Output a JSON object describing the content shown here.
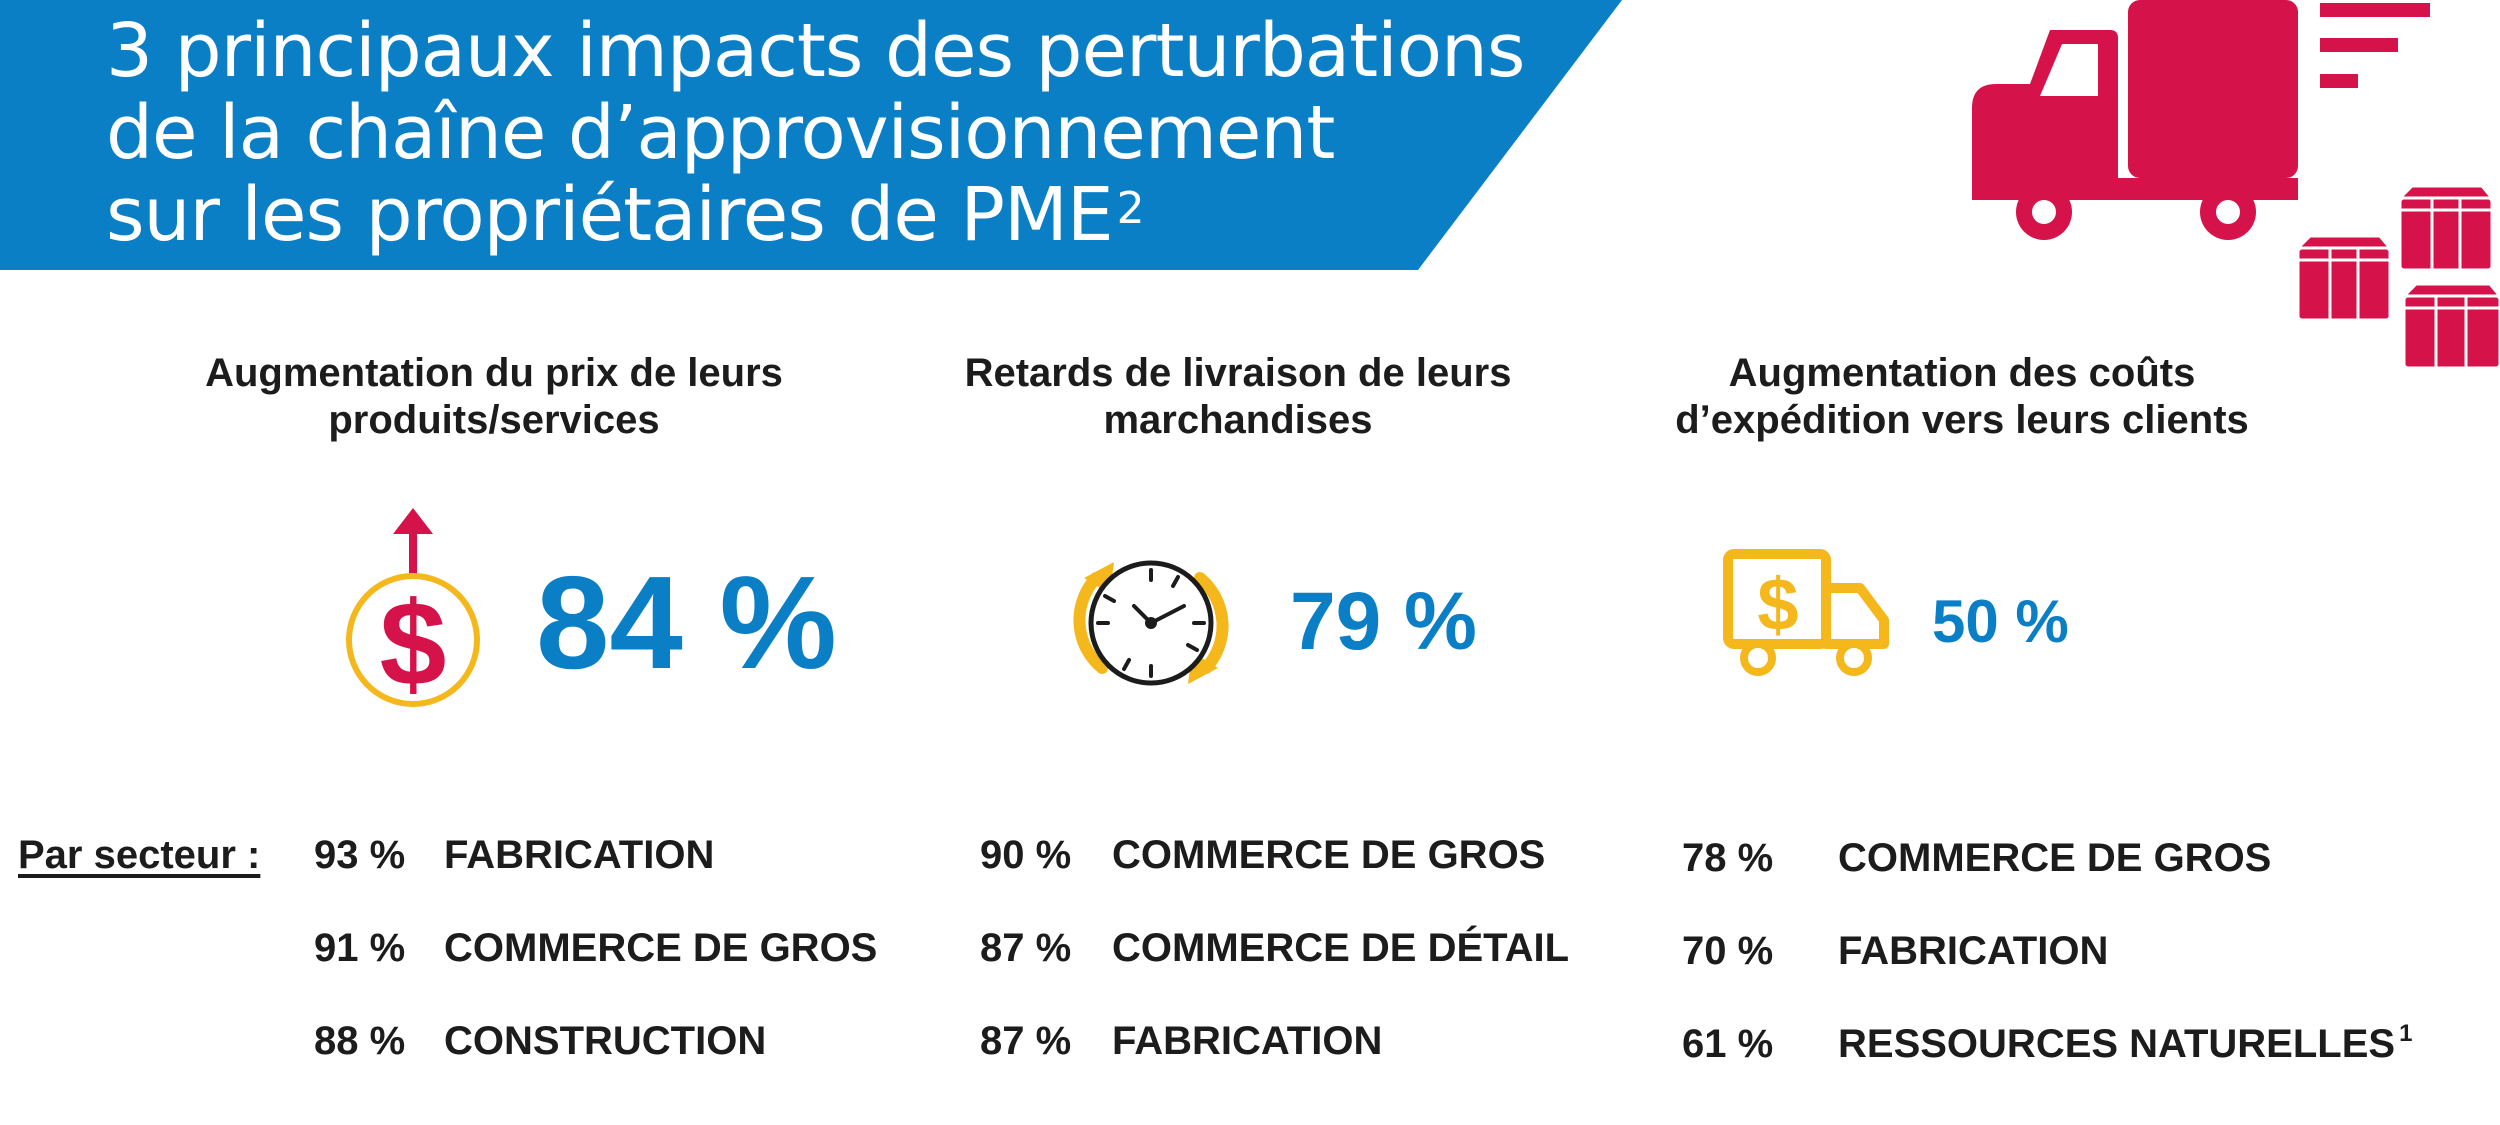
{
  "header": {
    "title_lines": [
      "3 principaux impacts des perturbations",
      "de la chaîne d’approvisionnement",
      "sur les propriétaires de PME"
    ],
    "title_footnote": "2"
  },
  "sector_label": "Par secteur :",
  "impacts": [
    {
      "heading_lines": [
        "Augmentation du prix de leurs",
        "produits/services"
      ],
      "value": "84 %",
      "icon": "dollar-up-arrow-icon",
      "sectors": [
        {
          "pct": "93 %",
          "name": "FABRICATION"
        },
        {
          "pct": "91 %",
          "name": "COMMERCE DE GROS"
        },
        {
          "pct": "88 %",
          "name": "CONSTRUCTION"
        }
      ]
    },
    {
      "heading_lines": [
        "Retards de livraison de leurs",
        "marchandises"
      ],
      "value": "79 %",
      "icon": "clock-cycle-icon",
      "sectors": [
        {
          "pct": "90 %",
          "name": "COMMERCE DE GROS"
        },
        {
          "pct": "87 %",
          "name": "COMMERCE DE DÉTAIL"
        },
        {
          "pct": "87 %",
          "name": "FABRICATION"
        }
      ]
    },
    {
      "heading_lines": [
        "Augmentation des coûts",
        "d’expédition vers leurs clients"
      ],
      "value": "50 %",
      "icon": "delivery-truck-dollar-icon",
      "sectors": [
        {
          "pct": "78 %",
          "name": "COMMERCE DE GROS"
        },
        {
          "pct": "70 %",
          "name": "FABRICATION"
        },
        {
          "pct": "61 %",
          "name": "RESSOURCES NATURELLES",
          "footnote": "1"
        }
      ]
    }
  ],
  "colors": {
    "banner_blue": "#0a7fc6",
    "accent_red": "#d5134a",
    "accent_yellow": "#f5b81c",
    "text_dark": "#1c1c1c"
  }
}
